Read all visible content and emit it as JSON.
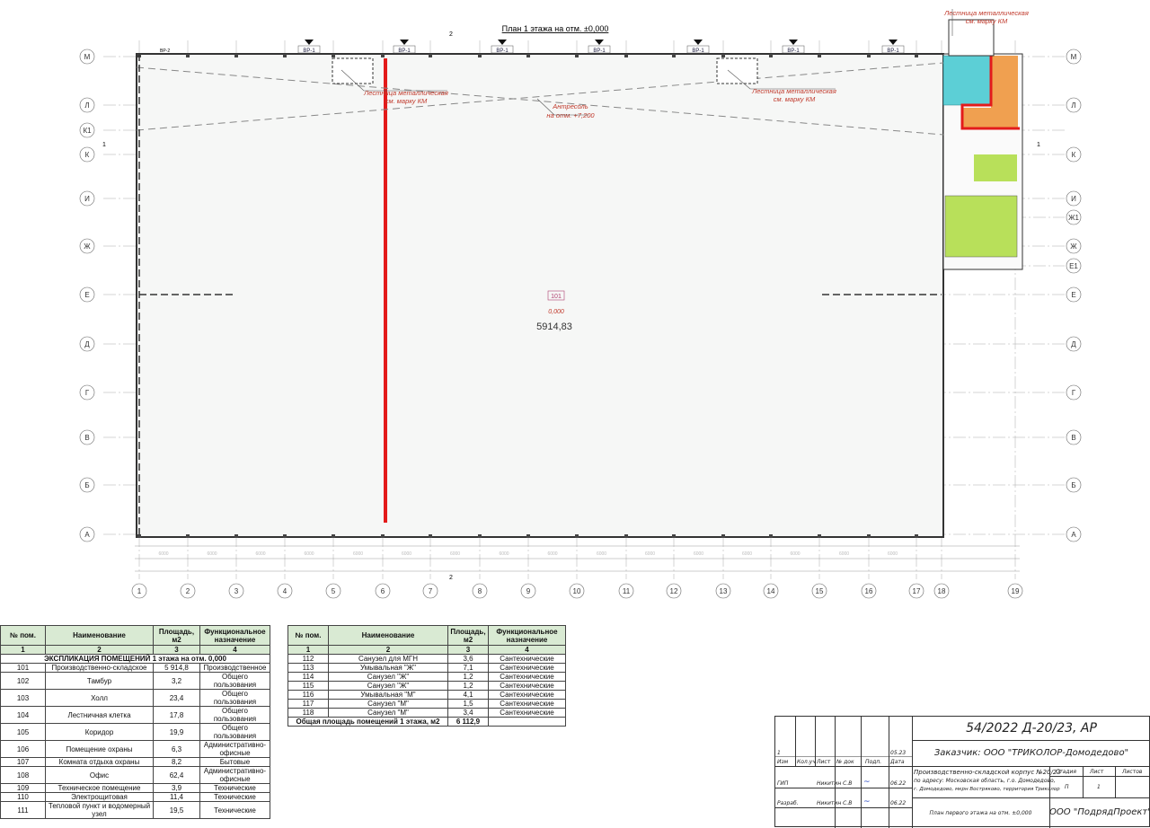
{
  "plan": {
    "title": "План 1 этажа на отм. ±0,000",
    "column_axes": [
      "1",
      "2",
      "3",
      "4",
      "5",
      "6",
      "7",
      "8",
      "9",
      "10",
      "11",
      "12",
      "13",
      "14",
      "15",
      "16",
      "17",
      "18",
      "19"
    ],
    "row_axes": [
      "М",
      "Л",
      "К1",
      "К",
      "И",
      "Ж1",
      "Ж",
      "Е1",
      "Е",
      "Д",
      "Г",
      "В",
      "Б",
      "А"
    ],
    "gate_label": "ВР-1",
    "gate_label_left": "ВР-2",
    "section_mark": "2",
    "section_mark_side": "1",
    "span_dimension": "6000",
    "room": {
      "number": "101",
      "level": "0,000",
      "area": "5914,83"
    },
    "notes": [
      {
        "line1": "Лестница металлическая",
        "line2": "см. марку КМ"
      },
      {
        "line1": "Антресоль",
        "line2": "на отм. +7,200"
      },
      {
        "line1": "Лестница металлическая",
        "line2": "см. марку КМ"
      },
      {
        "line1": "Лестница металлическая",
        "line2": "см. марку КМ"
      }
    ],
    "colors": {
      "highlight": "#e31b1b",
      "sanitary": "#5ccfd6",
      "office": "#f0a050",
      "green": "#b8e05a",
      "annotation": "#c0392b"
    }
  },
  "table_left": {
    "headers": [
      "№ пом.",
      "Наименование",
      "Площадь, м2",
      "Функциональное назначение"
    ],
    "col_numbers": [
      "1",
      "2",
      "3",
      "4"
    ],
    "title": "ЭКСПЛИКАЦИЯ ПОМЕЩЕНИЙ 1 этажа на отм. 0,000",
    "rows": [
      [
        "101",
        "Производственно-складское",
        "5 914,8",
        "Производственное"
      ],
      [
        "102",
        "Тамбур",
        "3,2",
        "Общего пользования"
      ],
      [
        "103",
        "Холл",
        "23,4",
        "Общего пользования"
      ],
      [
        "104",
        "Лестничная клетка",
        "17,8",
        "Общего пользования"
      ],
      [
        "105",
        "Коридор",
        "19,9",
        "Общего пользования"
      ],
      [
        "106",
        "Помещение охраны",
        "6,3",
        "Административно-офисные"
      ],
      [
        "107",
        "Комната отдыха охраны",
        "8,2",
        "Бытовые"
      ],
      [
        "108",
        "Офис",
        "62,4",
        "Административно-офисные"
      ],
      [
        "109",
        "Техническое помещение",
        "3,9",
        "Технические"
      ],
      [
        "110",
        "Электрощитовая",
        "11,4",
        "Технические"
      ],
      [
        "111",
        "Тепловой пункт и водомерный узел",
        "19,5",
        "Технические"
      ]
    ]
  },
  "table_right": {
    "headers": [
      "№ пом.",
      "Наименование",
      "Площадь, м2",
      "Функциональное назначение"
    ],
    "col_numbers": [
      "1",
      "2",
      "3",
      "4"
    ],
    "rows": [
      [
        "112",
        "Санузел для МГН",
        "3,6",
        "Сантехнические"
      ],
      [
        "113",
        "Умывальная \"Ж\"",
        "7,1",
        "Сантехнические"
      ],
      [
        "114",
        "Санузел \"Ж\"",
        "1,2",
        "Сантехнические"
      ],
      [
        "115",
        "Санузел \"Ж\"",
        "1,2",
        "Сантехнические"
      ],
      [
        "116",
        "Умывальная \"М\"",
        "4,1",
        "Сантехнические"
      ],
      [
        "117",
        "Санузел \"М\"",
        "1,5",
        "Сантехнические"
      ],
      [
        "118",
        "Санузел \"М\"",
        "3,4",
        "Сантехнические"
      ]
    ],
    "total_label": "Общая площадь помещений 1 этажа, м2",
    "total_value": "6 112,9"
  },
  "title_block": {
    "code": "54/2022 Д-20/23, АР",
    "customer": "Заказчик: ООО \"ТРИКОЛОР-Домодедово\"",
    "revision": "1",
    "revision_date": "05.23",
    "headers": [
      "Изм",
      "Кол.уч",
      "Лист",
      "№ док",
      "Подп.",
      "Дата"
    ],
    "gip_role": "ГИП",
    "gip_name": "Никитин С.В",
    "gip_date": "06.22",
    "dev_role": "Разраб.",
    "dev_name": "Никитин С.В",
    "dev_date": "06.22",
    "project_lines": [
      "Производственно-складской корпус №20/23",
      "по адресу: Московская область, г.о. Домодедово,",
      "г. Домодедово, мкрн Востряково, территория Триколор"
    ],
    "stage_label": "Стадия",
    "sheet_label": "Лист",
    "sheets_label": "Листов",
    "stage": "П",
    "sheet": "1",
    "sheet_name": "План первого этажа на отм. ±0,000",
    "company": "ООО \"ПодрядПроект\""
  }
}
